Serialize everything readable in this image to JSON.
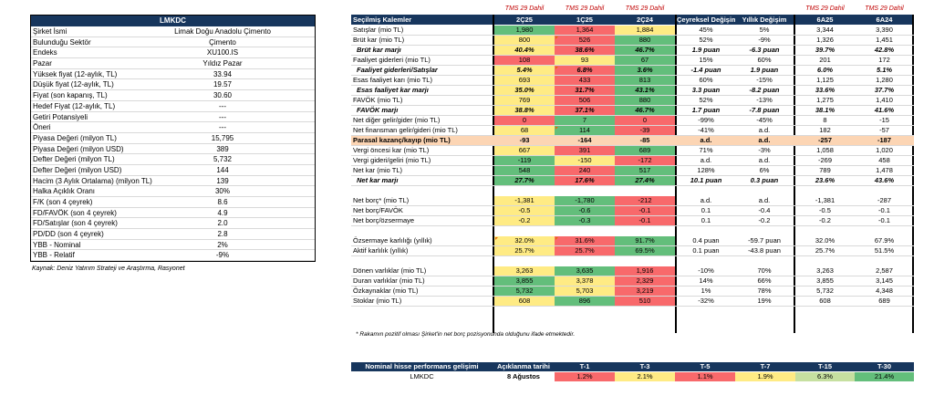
{
  "company_panel": {
    "header": "LMKDC",
    "rows": [
      {
        "label": "Şirket İsmi",
        "value": "Limak Doğu Anadolu Çimento"
      },
      {
        "label": "Bulunduğu Sektör",
        "value": "Çimento"
      },
      {
        "label": "Endeks",
        "value": "XU100.IS"
      },
      {
        "label": "Pazar",
        "value": "Yıldız Pazar"
      },
      {
        "label": "Yüksek fiyat (12-aylık, TL)",
        "value": "33.94"
      },
      {
        "label": "Düşük fiyat (12-aylık, TL)",
        "value": "19.57"
      },
      {
        "label": "Fiyat (son kapanış, TL)",
        "value": "30.60"
      },
      {
        "label": "Hedef Fiyat (12-aylık, TL)",
        "value": "---"
      },
      {
        "label": "Getiri Potansiyeli",
        "value": "---"
      },
      {
        "label": "Öneri",
        "value": "---"
      },
      {
        "label": "Piyasa Değeri (milyon TL)",
        "value": "15,795"
      },
      {
        "label": "Piyasa Değeri (milyon USD)",
        "value": "389"
      },
      {
        "label": "Defter Değeri (milyon TL)",
        "value": "5,732"
      },
      {
        "label": "Defter Değeri (milyon USD)",
        "value": "144"
      },
      {
        "label": "Hacim (3 Aylık Ortalama) (milyon TL)",
        "value": "139"
      },
      {
        "label": "Halka Açıklık Oranı",
        "value": "30%"
      },
      {
        "label": "F/K (son 4 çeyrek)",
        "value": "8.6"
      },
      {
        "label": "FD/FAVÖK (son 4 çeyrek)",
        "value": "4.9"
      },
      {
        "label": "FD/Satışlar (son 4 çeyrek)",
        "value": "2.0"
      },
      {
        "label": "PD/DD (son 4 çeyrek)",
        "value": "2.8"
      },
      {
        "label": "YBB - Nominal",
        "value": "2%"
      },
      {
        "label": "YBB - Relatif",
        "value": "-9%"
      }
    ],
    "source": "Kaynak: Deniz Yatırım Strateji ve Araştırma, Rasyonet"
  },
  "main_table": {
    "tms_note": "TMS 29 Dahil",
    "headers": {
      "label": "Seçilmiş Kalemler",
      "q2c25": "2Ç25",
      "q1c25": "1Ç25",
      "q2c24": "2Ç24",
      "qoq": "Çeyreksel Değişim",
      "yoy": "Yıllık Değişim",
      "h6a25": "6A25",
      "h6a24": "6A24"
    },
    "rows": [
      {
        "label": "Satışlar (mio TL)",
        "q2c25": "1,980",
        "q1c25": "1,364",
        "q2c24": "1,884",
        "qoq": "45%",
        "yoy": "5%",
        "h6a25": "3,344",
        "h6a24": "3,390"
      },
      {
        "label": "Brüt kar (mio TL)",
        "q2c25": "800",
        "q1c25": "526",
        "q2c24": "880",
        "qoq": "52%",
        "yoy": "-9%",
        "h6a25": "1,326",
        "h6a24": "1,451"
      },
      {
        "label": "Brüt kar marjı",
        "q2c25": "40.4%",
        "q1c25": "38.6%",
        "q2c24": "46.7%",
        "qoq": "1.9 puan",
        "yoy": "-6.3 puan",
        "h6a25": "39.7%",
        "h6a24": "42.8%"
      },
      {
        "label": "Faaliyet giderleri (mio TL)",
        "q2c25": "108",
        "q1c25": "93",
        "q2c24": "67",
        "qoq": "15%",
        "yoy": "60%",
        "h6a25": "201",
        "h6a24": "172"
      },
      {
        "label": "Faaliyet giderleri/Satışlar",
        "q2c25": "5.4%",
        "q1c25": "6.8%",
        "q2c24": "3.6%",
        "qoq": "-1.4 puan",
        "yoy": "1.9 puan",
        "h6a25": "6.0%",
        "h6a24": "5.1%"
      },
      {
        "label": "Esas faaliyet karı (mio TL)",
        "q2c25": "693",
        "q1c25": "433",
        "q2c24": "813",
        "qoq": "60%",
        "yoy": "-15%",
        "h6a25": "1,125",
        "h6a24": "1,280"
      },
      {
        "label": "Esas faaliyet kar marjı",
        "q2c25": "35.0%",
        "q1c25": "31.7%",
        "q2c24": "43.1%",
        "qoq": "3.3 puan",
        "yoy": "-8.2 puan",
        "h6a25": "33.6%",
        "h6a24": "37.7%"
      },
      {
        "label": "FAVÖK (mio TL)",
        "q2c25": "769",
        "q1c25": "506",
        "q2c24": "880",
        "qoq": "52%",
        "yoy": "-13%",
        "h6a25": "1,275",
        "h6a24": "1,410"
      },
      {
        "label": "FAVÖK marjı",
        "q2c25": "38.8%",
        "q1c25": "37.1%",
        "q2c24": "46.7%",
        "qoq": "1.7 puan",
        "yoy": "-7.8 puan",
        "h6a25": "38.1%",
        "h6a24": "41.6%"
      },
      {
        "label": "Net diğer gelir/gider (mio TL)",
        "q2c25": "0",
        "q1c25": "7",
        "q2c24": "0",
        "qoq": "-99%",
        "yoy": "-45%",
        "h6a25": "8",
        "h6a24": "-15"
      },
      {
        "label": "Net finansman gelir/gideri (mio TL)",
        "q2c25": "68",
        "q1c25": "114",
        "q2c24": "-39",
        "qoq": "-41%",
        "yoy": "a.d.",
        "h6a25": "182",
        "h6a24": "-57"
      },
      {
        "label": "Parasal kazanç/kayıp (mio TL)",
        "q2c25": "-93",
        "q1c25": "-164",
        "q2c24": "-85",
        "qoq": "a.d.",
        "yoy": "a.d.",
        "h6a25": "-257",
        "h6a24": "-187"
      },
      {
        "label": "Vergi öncesi kar (mio TL)",
        "q2c25": "667",
        "q1c25": "391",
        "q2c24": "689",
        "qoq": "71%",
        "yoy": "-3%",
        "h6a25": "1,058",
        "h6a24": "1,020"
      },
      {
        "label": "Vergi gideri/geliri (mio TL)",
        "q2c25": "-119",
        "q1c25": "-150",
        "q2c24": "-172",
        "qoq": "a.d.",
        "yoy": "a.d.",
        "h6a25": "-269",
        "h6a24": "458"
      },
      {
        "label": "Net kar (mio TL)",
        "q2c25": "548",
        "q1c25": "240",
        "q2c24": "517",
        "qoq": "128%",
        "yoy": "6%",
        "h6a25": "789",
        "h6a24": "1,478"
      },
      {
        "label": "Net kar marjı",
        "q2c25": "27.7%",
        "q1c25": "17.6%",
        "q2c24": "27.4%",
        "qoq": "10.1 puan",
        "yoy": "0.3 puan",
        "h6a25": "23.6%",
        "h6a24": "43.6%"
      },
      {
        "label": "",
        "q2c25": "",
        "q1c25": "",
        "q2c24": "",
        "qoq": "",
        "yoy": "",
        "h6a25": "",
        "h6a24": ""
      },
      {
        "label": "Net borç* (mio TL)",
        "q2c25": "-1,381",
        "q1c25": "-1,780",
        "q2c24": "-212",
        "qoq": "a.d.",
        "yoy": "a.d.",
        "h6a25": "-1,381",
        "h6a24": "-287"
      },
      {
        "label": "Net borç/FAVÖK",
        "q2c25": "-0.5",
        "q1c25": "-0.6",
        "q2c24": "-0.1",
        "qoq": "0.1",
        "yoy": "-0.4",
        "h6a25": "-0.5",
        "h6a24": "-0.1"
      },
      {
        "label": "Net borç/özsermaye",
        "q2c25": "-0.2",
        "q1c25": "-0.3",
        "q2c24": "-0.1",
        "qoq": "0.1",
        "yoy": "-0.2",
        "h6a25": "-0.2",
        "h6a24": "-0.1"
      },
      {
        "label": "",
        "q2c25": "",
        "q1c25": "",
        "q2c24": "",
        "qoq": "",
        "yoy": "",
        "h6a25": "",
        "h6a24": ""
      },
      {
        "label": "Özsermaye karlılığı (yıllık)",
        "q2c25": "32.0%",
        "q1c25": "31.6%",
        "q2c24": "91.7%",
        "qoq": "0.4 puan",
        "yoy": "-59.7 puan",
        "h6a25": "32.0%",
        "h6a24": "67.9%"
      },
      {
        "label": "Aktif karlılık (yıllık)",
        "q2c25": "25.7%",
        "q1c25": "25.7%",
        "q2c24": "69.5%",
        "qoq": "0.1 puan",
        "yoy": "-43.8 puan",
        "h6a25": "25.7%",
        "h6a24": "51.5%"
      },
      {
        "label": "",
        "q2c25": "",
        "q1c25": "",
        "q2c24": "",
        "qoq": "",
        "yoy": "",
        "h6a25": "",
        "h6a24": ""
      },
      {
        "label": "Dönen varlıklar (mio TL)",
        "q2c25": "3,263",
        "q1c25": "3,635",
        "q2c24": "1,916",
        "qoq": "-10%",
        "yoy": "70%",
        "h6a25": "3,263",
        "h6a24": "2,587"
      },
      {
        "label": "Duran varlıklar (mio TL)",
        "q2c25": "3,855",
        "q1c25": "3,378",
        "q2c24": "2,329",
        "qoq": "14%",
        "yoy": "66%",
        "h6a25": "3,855",
        "h6a24": "3,145"
      },
      {
        "label": "Özkaynaklar (mio TL)",
        "q2c25": "5,732",
        "q1c25": "5,703",
        "q2c24": "3,219",
        "qoq": "1%",
        "yoy": "78%",
        "h6a25": "5,732",
        "h6a24": "4,348"
      },
      {
        "label": "Stoklar (mio TL)",
        "q2c25": "608",
        "q1c25": "896",
        "q2c24": "510",
        "qoq": "-32%",
        "yoy": "19%",
        "h6a25": "608",
        "h6a24": "689"
      }
    ],
    "footnote": "* Rakamın pozitif olması Şirket'in net borç pozisyonunda olduğunu ifade etmektedir.",
    "colors": {
      "header": "#17365d",
      "green": "#63be7b",
      "yellow": "#ffeb84",
      "red": "#f8696b",
      "highlight": "#fcd5b4",
      "tms": "#c00000"
    }
  },
  "performance": {
    "headers": {
      "label": "Nominal hisse performans gelişimi",
      "date": "Açıklanma tarihi",
      "t1": "T-1",
      "t3": "T-3",
      "t5": "T-5",
      "t7": "T-7",
      "t15": "T-15",
      "t30": "T-30"
    },
    "row": {
      "label": "LMKDC",
      "date": "8 Ağustos",
      "t1": "1.2%",
      "t3": "2.1%",
      "t5": "1.1%",
      "t7": "1.9%",
      "t15": "6.3%",
      "t30": "21.4%"
    }
  }
}
